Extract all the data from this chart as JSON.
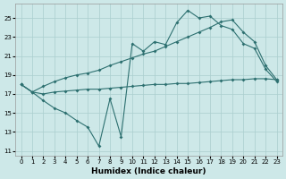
{
  "xlabel": "Humidex (Indice chaleur)",
  "bg_color": "#cde8e8",
  "grid_color": "#aacece",
  "line_color": "#2d7070",
  "xlim": [
    -0.5,
    23.5
  ],
  "ylim": [
    10.5,
    26.5
  ],
  "yticks": [
    11,
    13,
    15,
    17,
    19,
    21,
    23,
    25
  ],
  "xticks": [
    0,
    1,
    2,
    3,
    4,
    5,
    6,
    7,
    8,
    9,
    10,
    11,
    12,
    13,
    14,
    15,
    16,
    17,
    18,
    19,
    20,
    21,
    22,
    23
  ],
  "line1_x": [
    0,
    1,
    2,
    3,
    4,
    5,
    6,
    7,
    8,
    9,
    10,
    11,
    12,
    13,
    14,
    15,
    16,
    17,
    18,
    19,
    20,
    21,
    22,
    23
  ],
  "line1_y": [
    18.0,
    17.2,
    16.3,
    15.5,
    15.0,
    14.2,
    13.5,
    11.5,
    16.5,
    12.5,
    22.3,
    21.5,
    22.5,
    22.2,
    24.5,
    25.8,
    25.0,
    25.2,
    24.2,
    23.8,
    22.3,
    21.8,
    19.6,
    18.3
  ],
  "line2_x": [
    0,
    1,
    2,
    3,
    4,
    5,
    6,
    7,
    8,
    9,
    10,
    11,
    12,
    13,
    14,
    15,
    16,
    17,
    18,
    19,
    20,
    21,
    22,
    23
  ],
  "line2_y": [
    18.0,
    17.2,
    17.8,
    18.3,
    18.7,
    19.0,
    19.2,
    19.5,
    20.0,
    20.4,
    20.8,
    21.2,
    21.5,
    22.0,
    22.5,
    23.0,
    23.5,
    24.0,
    24.6,
    24.8,
    23.5,
    22.5,
    20.0,
    18.5
  ],
  "line3_x": [
    0,
    1,
    2,
    3,
    4,
    5,
    6,
    7,
    8,
    9,
    10,
    11,
    12,
    13,
    14,
    15,
    16,
    17,
    18,
    19,
    20,
    21,
    22,
    23
  ],
  "line3_y": [
    18.0,
    17.2,
    17.0,
    17.2,
    17.3,
    17.4,
    17.5,
    17.5,
    17.6,
    17.7,
    17.8,
    17.9,
    18.0,
    18.0,
    18.1,
    18.1,
    18.2,
    18.3,
    18.4,
    18.5,
    18.5,
    18.6,
    18.6,
    18.5
  ]
}
